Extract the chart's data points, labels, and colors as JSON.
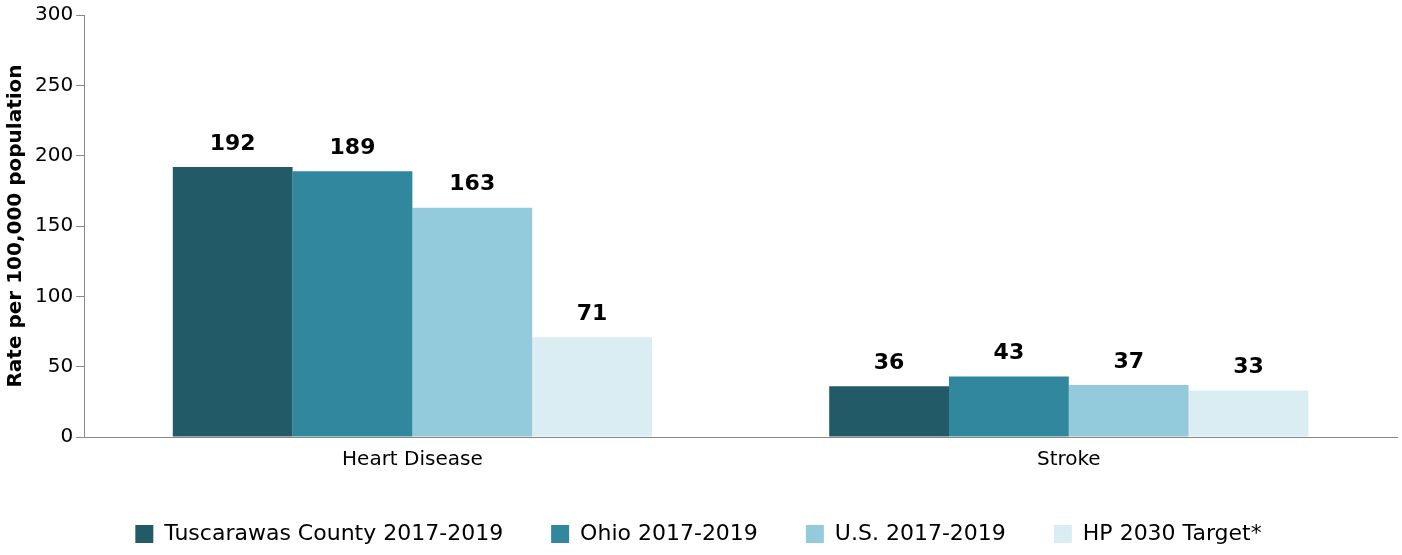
{
  "chart_data": {
    "type": "bar",
    "ylabel": "Rate per 100,000 population",
    "categories": [
      "Heart Disease",
      "Stroke"
    ],
    "series": [
      {
        "name": "Tuscarawas County 2017-2019",
        "color": "#225a68",
        "values": [
          192,
          36
        ]
      },
      {
        "name": "Ohio 2017-2019",
        "color": "#31879e",
        "values": [
          189,
          43
        ]
      },
      {
        "name": "U.S. 2017-2019",
        "color": "#93cbdc",
        "values": [
          163,
          37
        ]
      },
      {
        "name": "HP 2030 Target*",
        "color": "#daedf3",
        "values": [
          71,
          33
        ]
      }
    ],
    "ylim": [
      0,
      300
    ],
    "yticks": [
      0,
      50,
      100,
      150,
      200,
      250,
      300
    ],
    "grid": false,
    "legend": "bottom",
    "data_labels": true
  }
}
